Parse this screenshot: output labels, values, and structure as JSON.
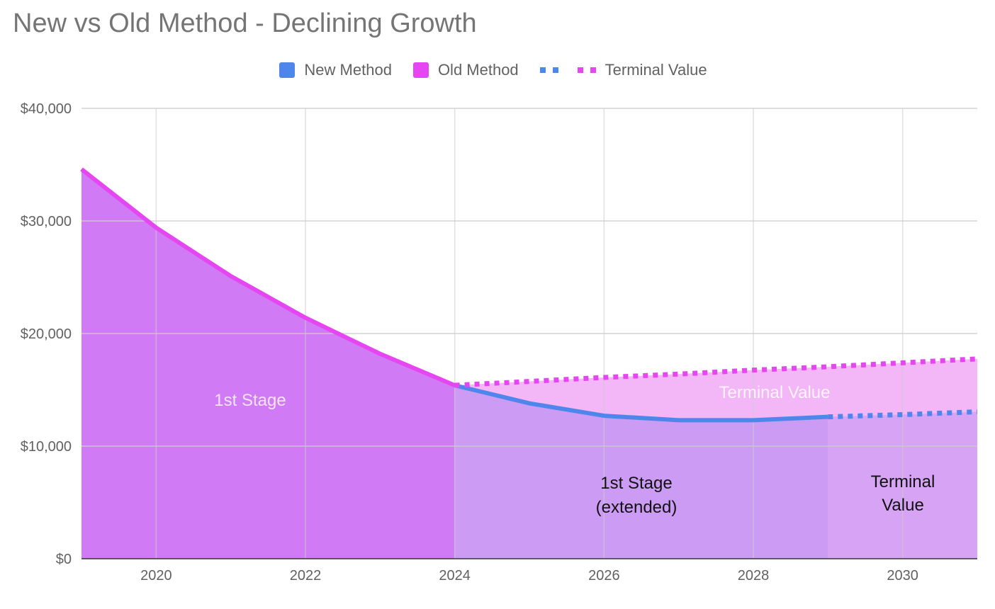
{
  "title": "New vs Old Method - Declining Growth",
  "legend": {
    "new_method": "New Method",
    "old_method": "Old Method",
    "terminal_value": "Terminal Value"
  },
  "colors": {
    "new_method": "#4f86ec",
    "old_method": "#e645f2",
    "first_stage_fill": "#d07af5",
    "extended_fill": "#cc9cf5",
    "terminal_fill_new": "#d7a3f5",
    "terminal_fill_old": "#f3b6f7",
    "grid": "#cccccc"
  },
  "region_labels": {
    "first_stage": "1st Stage",
    "extended_line1": "1st Stage",
    "extended_line2": "(extended)",
    "terminal_line1": "Terminal",
    "terminal_line2": "Value",
    "terminal_old": "Terminal Value"
  },
  "chart_data": {
    "type": "area",
    "title": "New vs Old Method - Declining Growth",
    "xlabel": "",
    "ylabel": "",
    "xlim": [
      2019,
      2031
    ],
    "ylim": [
      0,
      40000
    ],
    "grid": true,
    "legend_position": "top",
    "x_ticks": [
      2020,
      2022,
      2024,
      2026,
      2028,
      2030
    ],
    "y_ticks": [
      0,
      10000,
      20000,
      30000,
      40000
    ],
    "y_tick_labels": [
      "$0",
      "$10,000",
      "$20,000",
      "$30,000",
      "$40,000"
    ],
    "series": [
      {
        "name": "Old Method",
        "style": "solid",
        "x": [
          2019,
          2020,
          2021,
          2022,
          2023,
          2024
        ],
        "values": [
          34600,
          29400,
          25100,
          21400,
          18200,
          15400
        ]
      },
      {
        "name": "New Method",
        "style": "solid",
        "x": [
          2024,
          2025,
          2026,
          2027,
          2028,
          2029
        ],
        "values": [
          15400,
          13800,
          12700,
          12300,
          12300,
          12600
        ]
      },
      {
        "name": "Terminal Value",
        "style": "dotted",
        "color_key": "old_method",
        "x": [
          2024,
          2025,
          2026,
          2027,
          2028,
          2029,
          2030,
          2031
        ],
        "values": [
          15400,
          15750,
          16100,
          16400,
          16750,
          17050,
          17400,
          17750
        ]
      },
      {
        "name": "Terminal Value",
        "style": "dotted",
        "color_key": "new_method",
        "x": [
          2029,
          2030,
          2031
        ],
        "values": [
          12600,
          12800,
          13050
        ]
      }
    ]
  }
}
